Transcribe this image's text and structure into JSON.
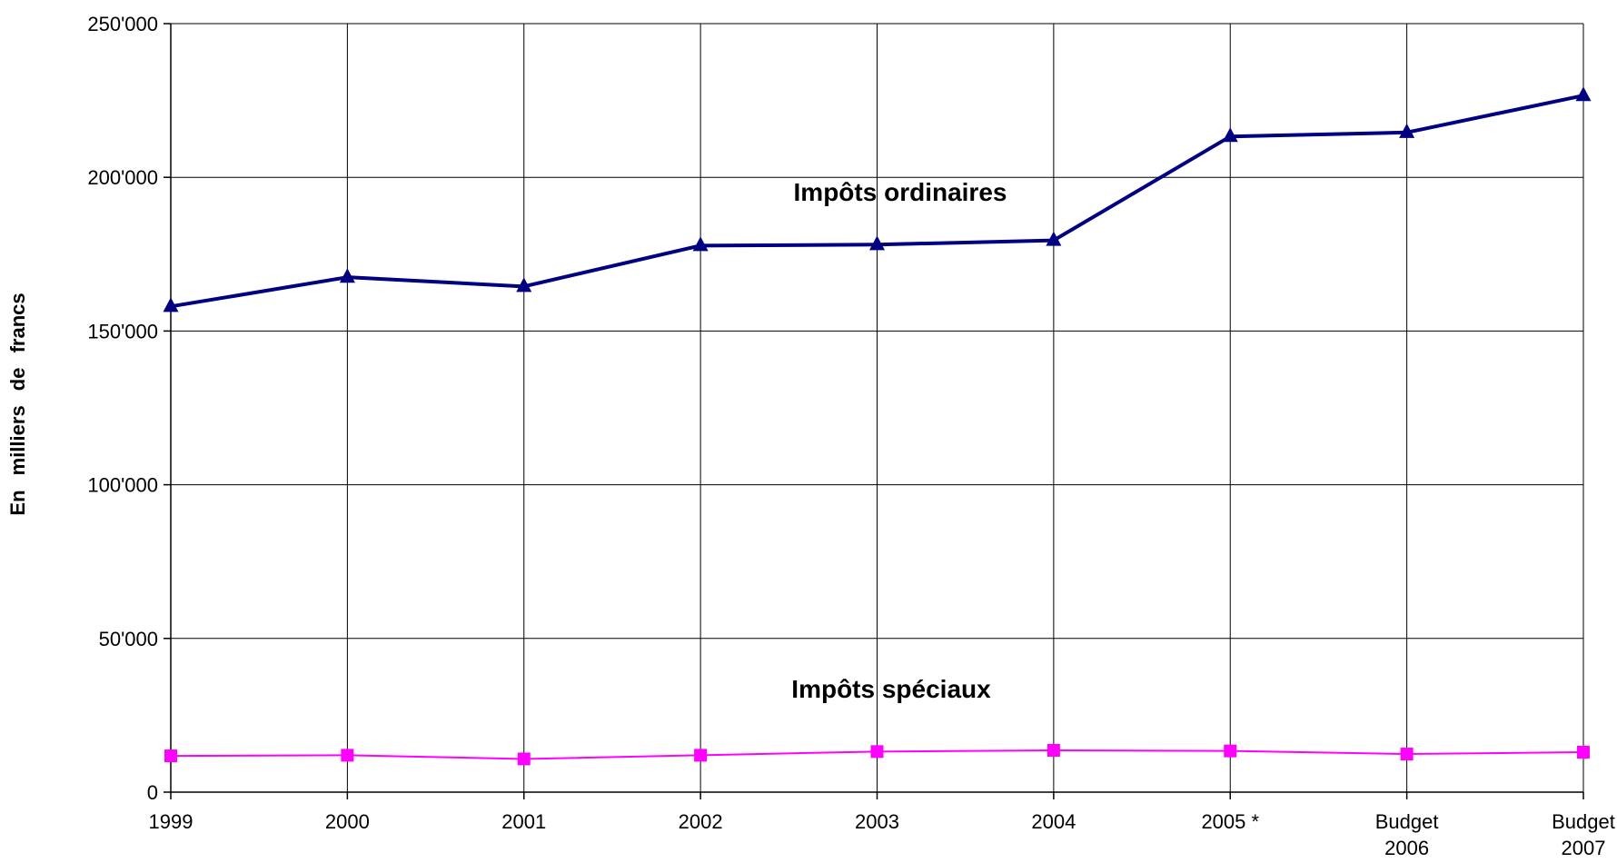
{
  "chart_data": {
    "type": "line",
    "categories": [
      [
        "1999"
      ],
      [
        "2000"
      ],
      [
        "2001"
      ],
      [
        "2002"
      ],
      [
        "2003"
      ],
      [
        "2004"
      ],
      [
        "2005 *"
      ],
      [
        "Budget",
        "2006"
      ],
      [
        "Budget",
        "2007"
      ]
    ],
    "ylabel": "En milliers de francs",
    "ylim": [
      0,
      250000
    ],
    "yticks": [
      0,
      50000,
      100000,
      150000,
      200000,
      250000
    ],
    "ytick_labels": [
      "0",
      "50'000",
      "100'000",
      "150'000",
      "200'000",
      "250'000"
    ],
    "grid": true,
    "series": [
      {
        "name": "Impôts ordinaires",
        "color": "#000080",
        "marker": "triangle",
        "values": [
          158000,
          167500,
          164500,
          177800,
          178100,
          179500,
          213300,
          214600,
          226600
        ]
      },
      {
        "name": "Impôts spéciaux",
        "color": "#ff00ff",
        "marker": "square",
        "values": [
          11800,
          12000,
          10800,
          12000,
          13200,
          13600,
          13400,
          12400,
          13000
        ]
      }
    ]
  }
}
